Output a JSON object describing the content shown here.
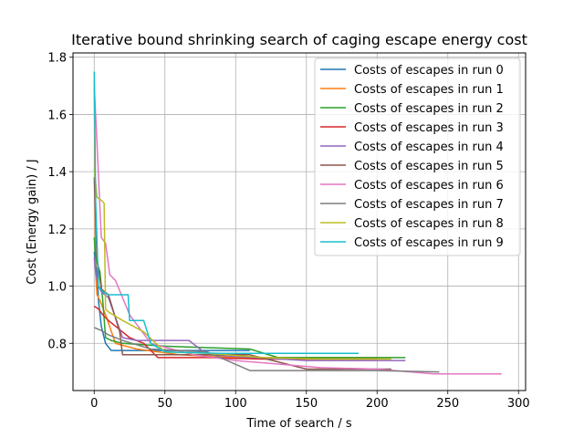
{
  "chart_data": {
    "type": "line",
    "title": "Iterative bound shrinking search of caging escape energy cost",
    "xlabel": "Time of search / s",
    "ylabel": "Cost (Energy gain) / J",
    "xlim": [
      -15,
      305
    ],
    "ylim": [
      0.635,
      1.815
    ],
    "xticks": [
      0,
      50,
      100,
      150,
      200,
      250,
      300
    ],
    "yticks": [
      0.8,
      1.0,
      1.2,
      1.4,
      1.6,
      1.8
    ],
    "ytick_labels": [
      "0.8",
      "1.0",
      "1.2",
      "1.4",
      "1.6",
      "1.8"
    ],
    "grid": true,
    "legend_position": "top-right",
    "series": [
      {
        "name": "Costs of escapes in run 0",
        "color": "#1f77b4",
        "x": [
          0,
          1,
          2,
          3,
          5,
          8,
          12,
          40,
          80,
          110
        ],
        "y": [
          1.12,
          1.08,
          1.05,
          0.95,
          0.86,
          0.8,
          0.775,
          0.775,
          0.775,
          0.775
        ]
      },
      {
        "name": "Costs of escapes in run 1",
        "color": "#ff7f0e",
        "x": [
          0,
          1,
          2,
          4,
          8,
          15,
          30,
          60,
          100,
          150,
          210
        ],
        "y": [
          1.72,
          1.05,
          0.97,
          0.95,
          0.9,
          0.8,
          0.78,
          0.76,
          0.75,
          0.75,
          0.75
        ]
      },
      {
        "name": "Costs of escapes in run 2",
        "color": "#2ca02c",
        "x": [
          0,
          1,
          2,
          4,
          6,
          8,
          12,
          20,
          50,
          80,
          110,
          130,
          220
        ],
        "y": [
          1.17,
          1.1,
          1.08,
          1.05,
          0.95,
          0.82,
          0.81,
          0.8,
          0.79,
          0.785,
          0.78,
          0.75,
          0.75
        ]
      },
      {
        "name": "Costs of escapes in run 3",
        "color": "#d62728",
        "x": [
          0,
          3,
          6,
          10,
          15,
          25,
          35,
          45,
          80,
          120,
          160,
          200
        ],
        "y": [
          0.93,
          0.92,
          0.9,
          0.88,
          0.86,
          0.82,
          0.8,
          0.75,
          0.75,
          0.745,
          0.745,
          0.745
        ]
      },
      {
        "name": "Costs of escapes in run 4",
        "color": "#9467bd",
        "x": [
          0,
          1,
          3,
          5,
          10,
          20,
          30,
          50,
          67,
          80,
          150,
          220
        ],
        "y": [
          1.1,
          1.05,
          1.0,
          0.98,
          0.96,
          0.82,
          0.81,
          0.81,
          0.81,
          0.76,
          0.74,
          0.74
        ]
      },
      {
        "name": "Costs of escapes in run 5",
        "color": "#8c564b",
        "x": [
          0,
          2,
          5,
          10,
          18,
          20,
          60,
          110,
          130,
          150,
          210
        ],
        "y": [
          1.38,
          1.1,
          0.99,
          0.97,
          0.84,
          0.76,
          0.76,
          0.76,
          0.735,
          0.71,
          0.71
        ]
      },
      {
        "name": "Costs of escapes in run 6",
        "color": "#e377c2",
        "x": [
          0,
          2,
          5,
          8,
          11,
          15,
          25,
          40,
          70,
          100,
          160,
          200,
          240,
          288
        ],
        "y": [
          1.7,
          1.5,
          1.17,
          1.15,
          1.04,
          1.02,
          0.9,
          0.8,
          0.76,
          0.74,
          0.715,
          0.71,
          0.693,
          0.693
        ]
      },
      {
        "name": "Costs of escapes in run 7",
        "color": "#7f7f7f",
        "x": [
          0,
          5,
          10,
          20,
          40,
          80,
          110,
          150,
          200,
          244
        ],
        "y": [
          0.855,
          0.845,
          0.83,
          0.81,
          0.78,
          0.77,
          0.705,
          0.705,
          0.705,
          0.7
        ]
      },
      {
        "name": "Costs of escapes in run 8",
        "color": "#bcbd22",
        "x": [
          0,
          2,
          5,
          7,
          8,
          10,
          20,
          35,
          50,
          80,
          120,
          160,
          210
        ],
        "y": [
          1.41,
          1.31,
          1.3,
          1.29,
          0.92,
          0.91,
          0.88,
          0.84,
          0.77,
          0.765,
          0.75,
          0.745,
          0.745
        ]
      },
      {
        "name": "Costs of escapes in run 9",
        "color": "#17becf",
        "x": [
          0,
          1,
          3,
          6,
          10,
          24,
          25,
          35,
          40,
          50,
          90,
          110,
          130,
          187
        ],
        "y": [
          1.75,
          1.3,
          1.0,
          0.98,
          0.97,
          0.97,
          0.88,
          0.88,
          0.8,
          0.77,
          0.765,
          0.765,
          0.765,
          0.765
        ]
      }
    ]
  }
}
